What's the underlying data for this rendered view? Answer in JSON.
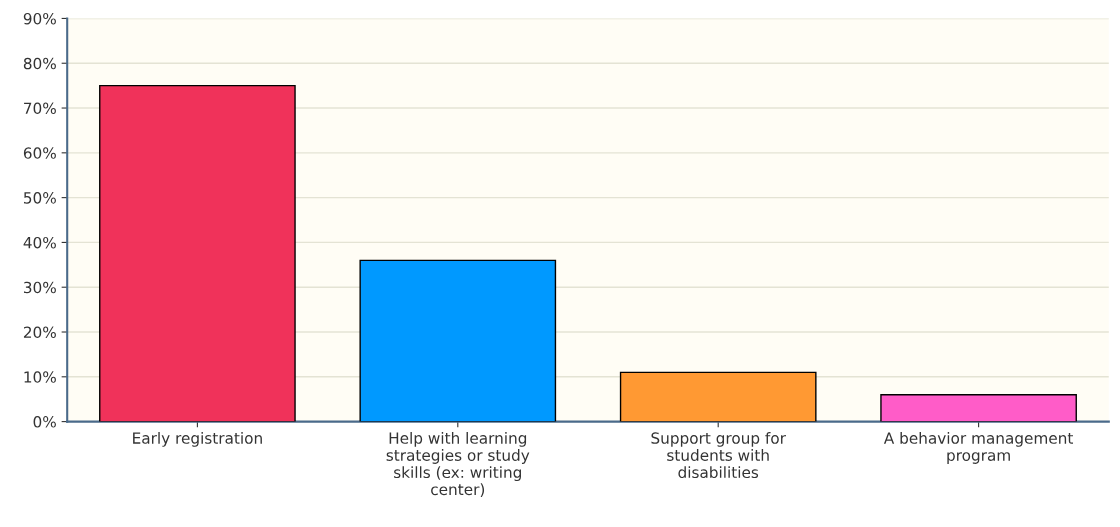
{
  "chart_data": {
    "type": "bar",
    "categories": [
      "Early registration",
      "Help with learning strategies or study skills (ex: writing center)",
      "Support group for students with disabilities",
      "A behavior management program"
    ],
    "values": [
      75,
      36,
      11,
      6
    ],
    "colors": [
      "#f0325a",
      "#0099ff",
      "#ff9933",
      "#ff5cc8"
    ],
    "ylim": [
      0,
      90
    ],
    "yticks": [
      {
        "value": 0,
        "label": "0%"
      },
      {
        "value": 10,
        "label": "10%"
      },
      {
        "value": 20,
        "label": "20%"
      },
      {
        "value": 30,
        "label": "30%"
      },
      {
        "value": 40,
        "label": "40%"
      },
      {
        "value": 50,
        "label": "50%"
      },
      {
        "value": 60,
        "label": "60%"
      },
      {
        "value": 70,
        "label": "70%"
      },
      {
        "value": 80,
        "label": "80%"
      },
      {
        "value": 90,
        "label": "90%"
      }
    ],
    "grid": "y"
  }
}
